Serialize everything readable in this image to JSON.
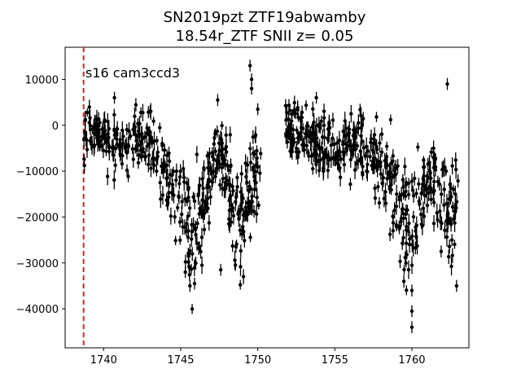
{
  "chart_data": {
    "type": "scatter",
    "title_line1": "SN2019pzt  ZTF19abwamby",
    "title_line2": "18.54r_ZTF SNII z= 0.05",
    "xlabel": "",
    "ylabel": "",
    "xlim": [
      1737.5,
      1763.7
    ],
    "ylim": [
      -48500,
      17000
    ],
    "x_ticks": [
      1740,
      1745,
      1750,
      1755,
      1760
    ],
    "y_ticks": [
      10000,
      0,
      -10000,
      -20000,
      -30000,
      -40000
    ],
    "grid": false,
    "marker_color": "#000000",
    "errorbars": true,
    "annotation": "s16 cam3ccd3",
    "vline": {
      "x": 1738.7,
      "color": "#d62728",
      "style": "dashed"
    },
    "trend_segments": [
      {
        "x": [
          1738.7,
          1739.5,
          1740.5,
          1741.5,
          1742.2,
          1742.8,
          1743.5,
          1744.2,
          1744.8,
          1745.3,
          1745.8,
          1746.2,
          1746.8,
          1747.2,
          1747.8,
          1748.3,
          1748.8,
          1749.3,
          1749.8,
          1750.2
        ],
        "y": [
          -2500,
          -1000,
          -4000,
          -6000,
          -3000,
          -2000,
          -7000,
          -10000,
          -15000,
          -22000,
          -25000,
          -20000,
          -12000,
          -6000,
          -8000,
          -16000,
          -22000,
          -17000,
          -12000,
          -10000
        ]
      },
      {
        "x": [
          1751.8,
          1752.5,
          1753.3,
          1754.2,
          1755.0,
          1755.8,
          1756.6,
          1757.3,
          1758.0,
          1758.6,
          1759.2,
          1759.7,
          1760.2,
          1760.7,
          1761.3,
          1761.8,
          1762.3,
          1762.7,
          1763.0
        ],
        "y": [
          0,
          -1000,
          -2500,
          -4000,
          -5500,
          -5500,
          -4000,
          -6500,
          -9000,
          -13000,
          -18000,
          -22000,
          -21000,
          -12000,
          -10000,
          -12000,
          -18000,
          -20000,
          -17000
        ]
      }
    ],
    "outliers": [
      {
        "x": 1740.7,
        "y": 6000
      },
      {
        "x": 1747.4,
        "y": 5500
      },
      {
        "x": 1749.5,
        "y": 13000
      },
      {
        "x": 1749.6,
        "y": 10000
      },
      {
        "x": 1749.6,
        "y": 8000
      },
      {
        "x": 1745.3,
        "y": -32000
      },
      {
        "x": 1745.6,
        "y": -35000
      },
      {
        "x": 1745.9,
        "y": -34500
      },
      {
        "x": 1747.6,
        "y": -31500
      },
      {
        "x": 1750.0,
        "y": 3500
      },
      {
        "x": 1760.0,
        "y": -40500
      },
      {
        "x": 1760.0,
        "y": -44000
      },
      {
        "x": 1760.0,
        "y": -36000
      },
      {
        "x": 1761.9,
        "y": -27500
      },
      {
        "x": 1762.9,
        "y": -35000
      },
      {
        "x": 1762.3,
        "y": 9000
      },
      {
        "x": 1753.8,
        "y": 6000
      },
      {
        "x": 1762.6,
        "y": -25000
      }
    ],
    "point_count": 900
  }
}
